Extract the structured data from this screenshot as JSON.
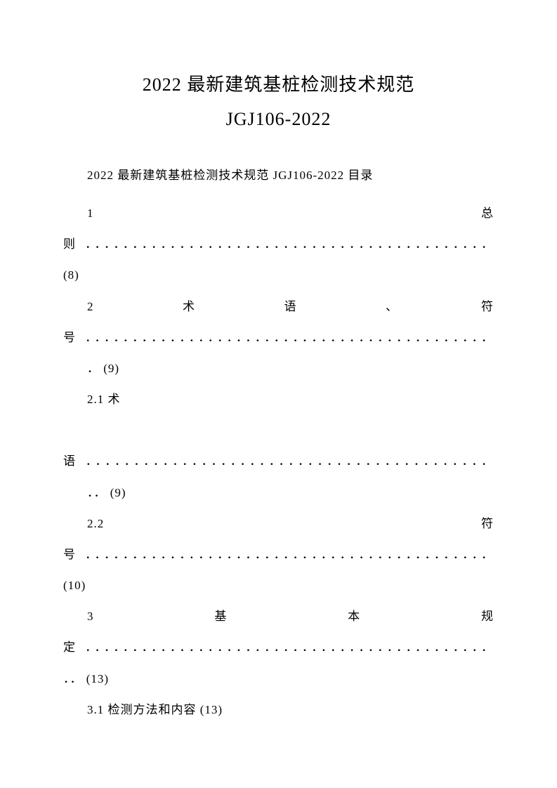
{
  "document": {
    "title_line1": "2022 最新建筑基桩检测技术规范",
    "title_line2": "JGJ106-2022",
    "toc_heading": "2022 最新建筑基桩检测技术规范 JGJ106-2022 目录",
    "entries": {
      "e1_line1": "1　　　　　　　　　　　　　　　　　　　　　　　　　总",
      "e1_line2": "则 ．．．．．．．．．．．．．．．．．．．．．．．．．．．．．．．．．．．．．．．．．．．",
      "e1_page": "(8)",
      "e2_line1": "2　　　　术　　　　语　　　　、　　　　符",
      "e2_line2": "号 ．．．．．．．．．．．．．．．．．．．．．．．．．．．．．．．．．．．．．．．．．．．",
      "e2_page": "． (9)",
      "e21_line1": "2.1 术",
      "e21_line2": "语 ．．．．．．．．．．．．．．．．．．．．．．．．．．．．．．．．．．．．．．．．．．",
      "e21_page": "．． (9)",
      "e22_line1": "2.2　　　　　　　　　　　　　　　　　　　　　　　　符",
      "e22_line2": "号 ．．．．．．．．．．．．．．．．．．．．．．．．．．．．．．．．．．．．．．．．．．．",
      "e22_page": "(10)",
      "e3_line1": "3　　　　　基　　　　　本　　　　　规",
      "e3_line2": "定 ．．．．．．．．．．．．．．．．．．．．．．．．．．．．．．．．．．．．．．．．．．．",
      "e3_page": "．． (13)",
      "e31": "3.1 检测方法和内容 (13)"
    },
    "colors": {
      "text": "#000000",
      "background": "#ffffff"
    },
    "typography": {
      "title_fontsize": 26,
      "body_fontsize": 17,
      "font_family": "SimSun"
    }
  }
}
